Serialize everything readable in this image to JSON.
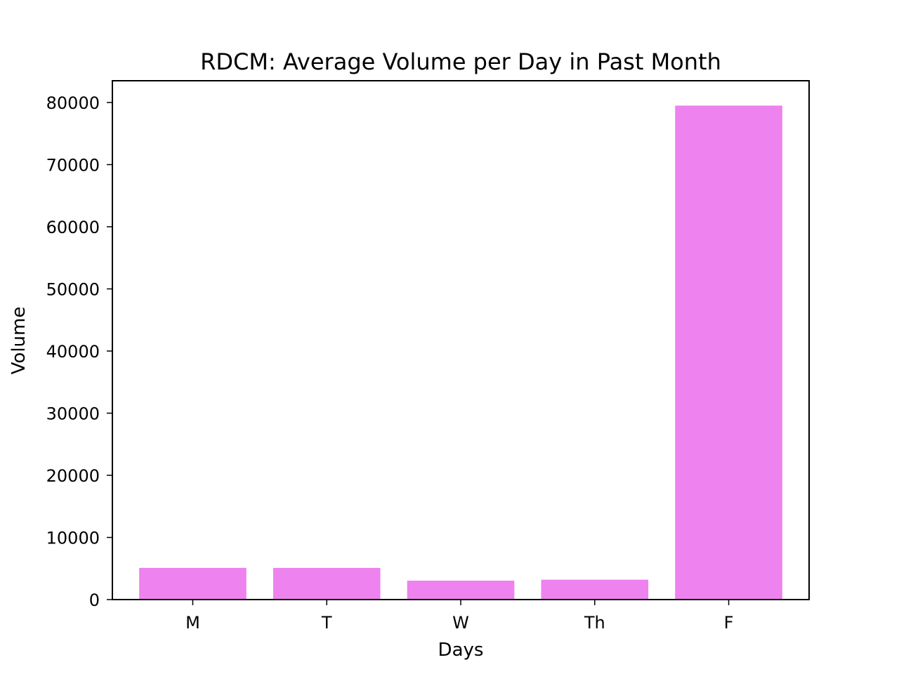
{
  "chart_data": {
    "type": "bar",
    "title": "RDCM: Average Volume per Day in Past Month",
    "xlabel": "Days",
    "ylabel": "Volume",
    "categories": [
      "M",
      "T",
      "W",
      "Th",
      "F"
    ],
    "values": [
      5100,
      5100,
      3050,
      3200,
      79500
    ],
    "ylim": [
      0,
      83500
    ],
    "yticks": [
      0,
      10000,
      20000,
      30000,
      40000,
      50000,
      60000,
      70000,
      80000
    ],
    "grid": false,
    "bar_color": "#ee82ee"
  }
}
